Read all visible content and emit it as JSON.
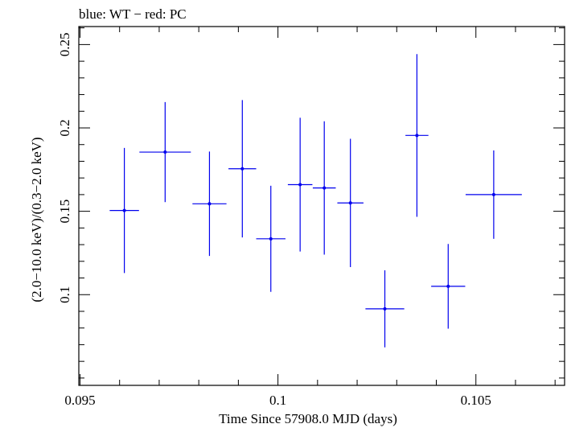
{
  "chart_data": {
    "type": "scatter",
    "title": "blue: WT − red: PC",
    "xlabel": "Time Since 57908.0 MJD (days)",
    "ylabel": "(2.0−10.0 keV)/(0.3−2.0 keV)",
    "xlim": [
      0.09497,
      0.10724
    ],
    "ylim": [
      0.0456,
      0.2608
    ],
    "x_ticks": [
      0.095,
      0.1,
      0.105
    ],
    "x_tick_labels": [
      "0.095",
      "0.1",
      "0.105"
    ],
    "y_ticks": [
      0.1,
      0.15,
      0.2,
      0.25
    ],
    "y_tick_labels": [
      "0.1",
      "0.15",
      "0.2",
      "0.25"
    ],
    "grid": false,
    "legend": "none",
    "series": [
      {
        "color": "#0000ee",
        "points": [
          {
            "x": 0.09612,
            "xerr": 0.00037,
            "y": 0.1505,
            "yerr": 0.0375
          },
          {
            "x": 0.09715,
            "xerr": 0.00065,
            "y": 0.1855,
            "yerr": 0.03
          },
          {
            "x": 0.09827,
            "xerr": 0.00043,
            "y": 0.1545,
            "yerr": 0.0313
          },
          {
            "x": 0.0991,
            "xerr": 0.00035,
            "y": 0.1755,
            "yerr": 0.0412
          },
          {
            "x": 0.09982,
            "xerr": 0.00037,
            "y": 0.1335,
            "yerr": 0.0318
          },
          {
            "x": 0.10056,
            "xerr": 0.00031,
            "y": 0.166,
            "yerr": 0.0401
          },
          {
            "x": 0.10117,
            "xerr": 0.00029,
            "y": 0.164,
            "yerr": 0.04
          },
          {
            "x": 0.10183,
            "xerr": 0.00033,
            "y": 0.155,
            "yerr": 0.0385
          },
          {
            "x": 0.1027,
            "xerr": 0.00049,
            "y": 0.0915,
            "yerr": 0.0231
          },
          {
            "x": 0.10351,
            "xerr": 0.00029,
            "y": 0.1955,
            "yerr": 0.0488
          },
          {
            "x": 0.1043,
            "xerr": 0.00043,
            "y": 0.105,
            "yerr": 0.0254
          },
          {
            "x": 0.10545,
            "xerr": 0.00071,
            "y": 0.16,
            "yerr": 0.0265
          }
        ]
      }
    ]
  }
}
